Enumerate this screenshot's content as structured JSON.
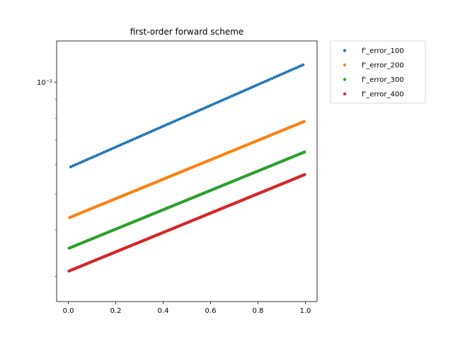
{
  "chart_data": {
    "type": "scatter",
    "title": "first-order forward scheme",
    "xlabel": "",
    "ylabel": "",
    "y_scale": "log",
    "xlim": [
      -0.0495,
      1.0495
    ],
    "ylim": [
      0.00257,
      0.0129
    ],
    "x_ticks": [
      0.0,
      0.2,
      0.4,
      0.6,
      0.8,
      1.0
    ],
    "x_tick_labels": [
      "0.0",
      "0.2",
      "0.4",
      "0.6",
      "0.8",
      "1.0"
    ],
    "y_major_ticks": [
      0.01
    ],
    "y_tick_labels": [
      "10⁻²"
    ],
    "y_minor_ticks": [
      0.003,
      0.004,
      0.005,
      0.006,
      0.007,
      0.008,
      0.009
    ],
    "grid": false,
    "legend_position": "outside top-right",
    "series": [
      {
        "name": "f'_error_100",
        "n": 100,
        "color": "#1f77b4",
        "y_start": 0.00588,
        "y_end": 0.0112
      },
      {
        "name": "f'_error_200",
        "n": 200,
        "color": "#ff7f0e",
        "y_start": 0.00431,
        "y_end": 0.00786
      },
      {
        "name": "f'_error_300",
        "n": 300,
        "color": "#2ca02c",
        "y_start": 0.00357,
        "y_end": 0.0065
      },
      {
        "name": "f'_error_400",
        "n": 400,
        "color": "#d62728",
        "y_start": 0.0031,
        "y_end": 0.00565
      }
    ]
  }
}
